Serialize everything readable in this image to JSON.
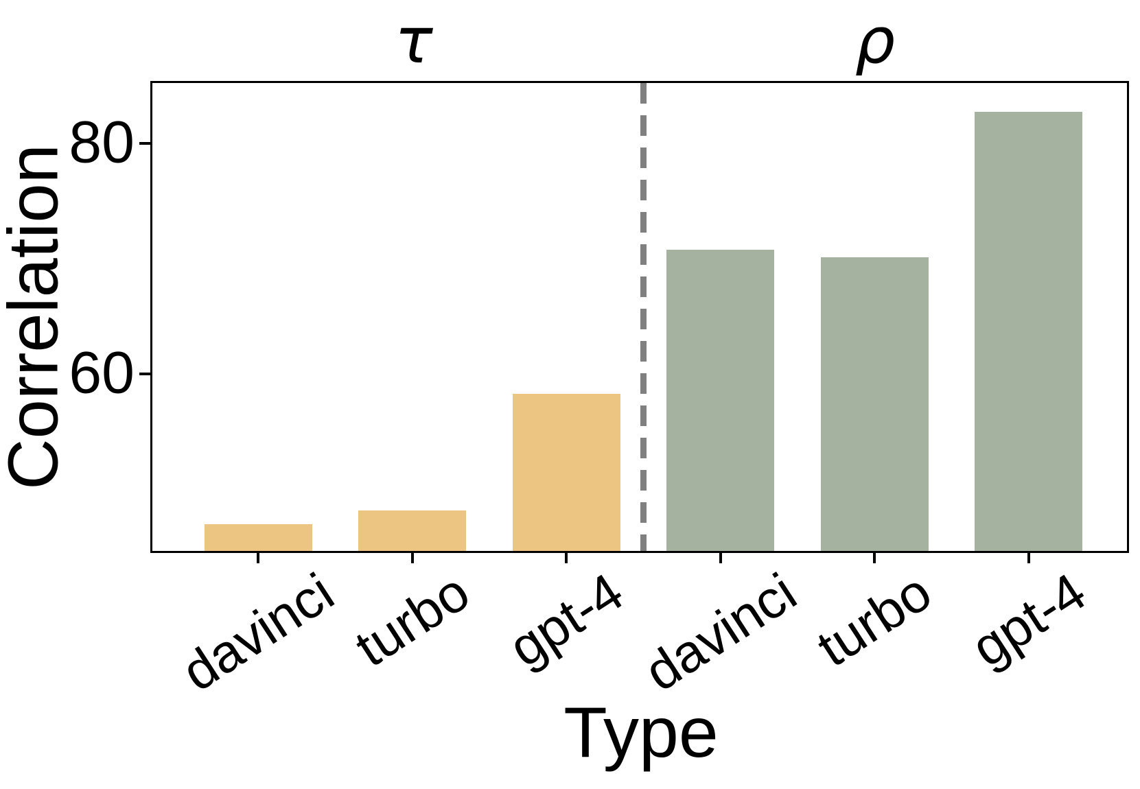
{
  "chart_data": {
    "type": "bar",
    "title": "",
    "xlabel": "Type",
    "ylabel": "Correlation",
    "groups": [
      {
        "label": "τ",
        "color": "#ECC583",
        "categories": [
          "davinci",
          "turbo",
          "gpt-4"
        ],
        "values": [
          47.0,
          48.2,
          58.3
        ]
      },
      {
        "label": "ρ",
        "color": "#A6B2A0",
        "categories": [
          "davinci",
          "turbo",
          "gpt-4"
        ],
        "values": [
          70.8,
          70.1,
          82.7
        ]
      }
    ],
    "yticks": [
      80,
      60
    ],
    "ylim": [
      44.7,
      85.2
    ],
    "grid": false,
    "legend": "none",
    "separator": {
      "style": "dashed",
      "color": "#808080",
      "between": [
        "τ",
        "ρ"
      ]
    },
    "axis_color": "#000000",
    "background": "#FFFFFF"
  }
}
